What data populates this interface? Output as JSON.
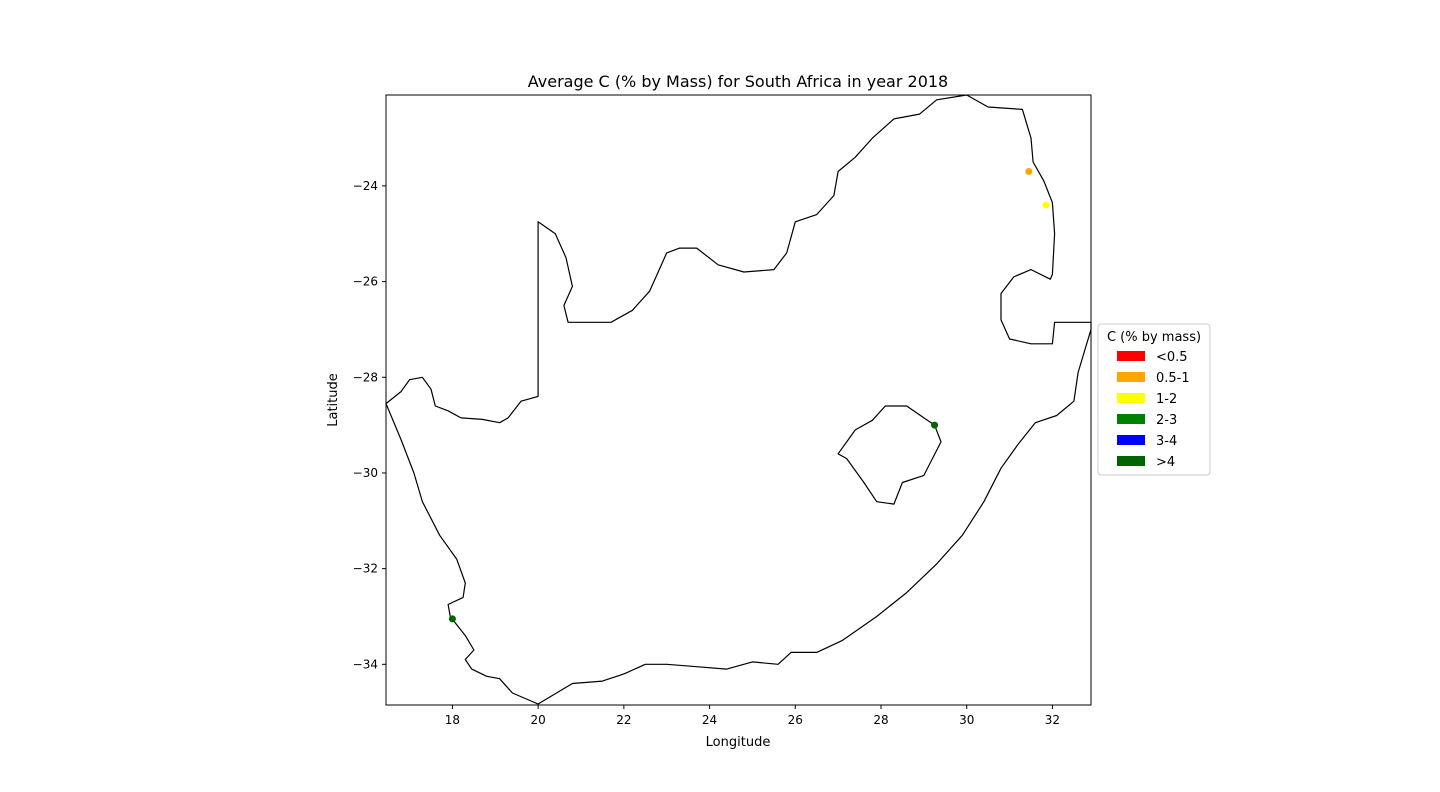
{
  "chart_data": {
    "type": "scatter",
    "title": "Average C (% by Mass) for South Africa in year 2018",
    "xlabel": "Longitude",
    "ylabel": "Latitude",
    "xlim": [
      16.45,
      32.9
    ],
    "ylim": [
      -34.85,
      -22.1
    ],
    "xticks": [
      18,
      20,
      22,
      24,
      26,
      28,
      30,
      32
    ],
    "yticks": [
      -24,
      -26,
      -28,
      -30,
      -32,
      -34
    ],
    "xtick_labels": [
      "18",
      "20",
      "22",
      "24",
      "26",
      "28",
      "30",
      "32"
    ],
    "ytick_labels": [
      "−24",
      "−26",
      "−28",
      "−30",
      "−32",
      "−34"
    ],
    "grid": false,
    "legend": {
      "title": "C (% by mass)",
      "placement": "center-right outside",
      "entries": [
        {
          "label": "<0.5",
          "color": "#ff0000"
        },
        {
          "label": "0.5-1",
          "color": "#ffa500"
        },
        {
          "label": "1-2",
          "color": "#ffff00"
        },
        {
          "label": "2-3",
          "color": "#008000"
        },
        {
          "label": "3-4",
          "color": "#0000ff"
        },
        {
          "label": ">4",
          "color": "#006400"
        }
      ]
    },
    "points": [
      {
        "lon": 31.45,
        "lat": -23.7,
        "category": "0.5-1",
        "color": "#ffa500"
      },
      {
        "lon": 31.85,
        "lat": -24.4,
        "category": "1-2",
        "color": "#ffff00"
      },
      {
        "lon": 29.25,
        "lat": -29.0,
        "category": ">4",
        "color": "#006400"
      },
      {
        "lon": 18.0,
        "lat": -33.05,
        "category": ">4",
        "color": "#006400"
      }
    ],
    "basemap": {
      "south_africa": [
        [
          16.45,
          -28.55
        ],
        [
          16.8,
          -28.3
        ],
        [
          17.0,
          -28.05
        ],
        [
          17.3,
          -28.0
        ],
        [
          17.5,
          -28.25
        ],
        [
          17.6,
          -28.6
        ],
        [
          17.9,
          -28.7
        ],
        [
          18.2,
          -28.85
        ],
        [
          18.7,
          -28.88
        ],
        [
          19.1,
          -28.95
        ],
        [
          19.3,
          -28.85
        ],
        [
          19.6,
          -28.5
        ],
        [
          20.0,
          -28.4
        ],
        [
          20.0,
          -24.75
        ],
        [
          20.4,
          -25.0
        ],
        [
          20.65,
          -25.5
        ],
        [
          20.8,
          -26.1
        ],
        [
          20.6,
          -26.5
        ],
        [
          20.7,
          -26.85
        ],
        [
          21.2,
          -26.85
        ],
        [
          21.7,
          -26.85
        ],
        [
          22.2,
          -26.6
        ],
        [
          22.6,
          -26.2
        ],
        [
          23.0,
          -25.4
        ],
        [
          23.3,
          -25.3
        ],
        [
          23.7,
          -25.3
        ],
        [
          24.2,
          -25.65
        ],
        [
          24.8,
          -25.8
        ],
        [
          25.5,
          -25.75
        ],
        [
          25.8,
          -25.4
        ],
        [
          26.0,
          -24.75
        ],
        [
          26.5,
          -24.6
        ],
        [
          26.9,
          -24.2
        ],
        [
          27.0,
          -23.7
        ],
        [
          27.4,
          -23.4
        ],
        [
          27.8,
          -23.0
        ],
        [
          28.3,
          -22.6
        ],
        [
          28.9,
          -22.5
        ],
        [
          29.3,
          -22.2
        ],
        [
          30.0,
          -22.1
        ],
        [
          30.5,
          -22.35
        ],
        [
          31.3,
          -22.4
        ],
        [
          31.5,
          -23.0
        ],
        [
          31.55,
          -23.5
        ],
        [
          31.8,
          -23.9
        ],
        [
          32.0,
          -24.35
        ],
        [
          32.05,
          -25.0
        ],
        [
          32.0,
          -25.85
        ],
        [
          31.95,
          -25.95
        ],
        [
          31.5,
          -25.75
        ],
        [
          31.1,
          -25.9
        ],
        [
          30.8,
          -26.25
        ],
        [
          30.8,
          -26.8
        ],
        [
          31.0,
          -27.2
        ],
        [
          31.5,
          -27.3
        ],
        [
          32.0,
          -27.3
        ],
        [
          32.05,
          -26.85
        ],
        [
          32.9,
          -26.85
        ],
        [
          32.9,
          -27.0
        ],
        [
          32.6,
          -27.9
        ],
        [
          32.5,
          -28.5
        ],
        [
          32.1,
          -28.8
        ],
        [
          31.6,
          -28.95
        ],
        [
          31.2,
          -29.4
        ],
        [
          30.8,
          -29.9
        ],
        [
          30.4,
          -30.6
        ],
        [
          29.9,
          -31.3
        ],
        [
          29.3,
          -31.9
        ],
        [
          28.6,
          -32.5
        ],
        [
          27.9,
          -33.0
        ],
        [
          27.1,
          -33.5
        ],
        [
          26.5,
          -33.75
        ],
        [
          25.9,
          -33.75
        ],
        [
          25.6,
          -34.0
        ],
        [
          25.0,
          -33.95
        ],
        [
          24.4,
          -34.1
        ],
        [
          23.7,
          -34.05
        ],
        [
          23.0,
          -34.0
        ],
        [
          22.5,
          -34.0
        ],
        [
          22.0,
          -34.2
        ],
        [
          21.5,
          -34.35
        ],
        [
          20.8,
          -34.4
        ],
        [
          20.0,
          -34.83
        ],
        [
          19.4,
          -34.6
        ],
        [
          19.1,
          -34.3
        ],
        [
          18.8,
          -34.25
        ],
        [
          18.45,
          -34.1
        ],
        [
          18.3,
          -33.9
        ],
        [
          18.5,
          -33.7
        ],
        [
          18.3,
          -33.4
        ],
        [
          17.95,
          -33.0
        ],
        [
          17.9,
          -32.75
        ],
        [
          18.25,
          -32.6
        ],
        [
          18.3,
          -32.3
        ],
        [
          18.1,
          -31.8
        ],
        [
          17.7,
          -31.3
        ],
        [
          17.3,
          -30.6
        ],
        [
          17.1,
          -30.0
        ],
        [
          16.8,
          -29.3
        ],
        [
          16.45,
          -28.55
        ]
      ],
      "lesotho": [
        [
          28.1,
          -28.6
        ],
        [
          28.6,
          -28.6
        ],
        [
          29.0,
          -28.85
        ],
        [
          29.25,
          -29.0
        ],
        [
          29.4,
          -29.35
        ],
        [
          29.2,
          -29.7
        ],
        [
          29.0,
          -30.05
        ],
        [
          28.5,
          -30.2
        ],
        [
          28.3,
          -30.65
        ],
        [
          27.9,
          -30.6
        ],
        [
          27.6,
          -30.2
        ],
        [
          27.2,
          -29.7
        ],
        [
          27.0,
          -29.6
        ],
        [
          27.4,
          -29.1
        ],
        [
          27.8,
          -28.9
        ],
        [
          28.1,
          -28.6
        ]
      ]
    }
  }
}
